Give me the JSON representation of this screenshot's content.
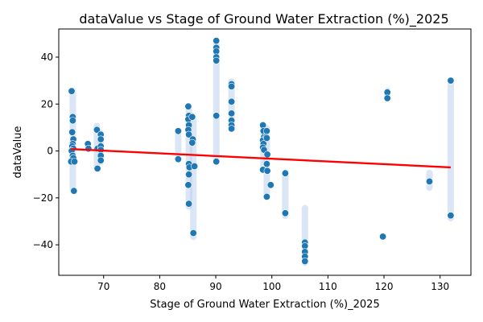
{
  "chart_data": {
    "type": "scatter",
    "title": "dataValue vs Stage of Ground Water Extraction (%)_2025",
    "xlabel": "Stage of Ground Water Extraction (%)_2025",
    "ylabel": "dataValue",
    "xlim": [
      62,
      135.5
    ],
    "ylim": [
      -53,
      52
    ],
    "xticks": [
      70,
      80,
      90,
      100,
      110,
      120,
      130
    ],
    "yticks": [
      -40,
      -20,
      0,
      20,
      40
    ],
    "grid": false,
    "colors": {
      "points": "#1f77b4",
      "band": "#aec7e8",
      "regression": "#ff0000"
    },
    "series": [
      {
        "type": "scatter",
        "points": [
          [
            64.3,
            25.5
          ],
          [
            64.5,
            14.5
          ],
          [
            64.5,
            13
          ],
          [
            64.4,
            8
          ],
          [
            64.6,
            5
          ],
          [
            64.5,
            3
          ],
          [
            64.4,
            2
          ],
          [
            64.6,
            1
          ],
          [
            64.3,
            0
          ],
          [
            64.5,
            -2
          ],
          [
            64.6,
            -3
          ],
          [
            64.2,
            -4.5
          ],
          [
            64.8,
            -4.5
          ],
          [
            64.7,
            -17
          ],
          [
            67.2,
            3
          ],
          [
            67.3,
            1
          ],
          [
            68.8,
            9
          ],
          [
            68.9,
            1
          ],
          [
            68.9,
            -7.5
          ],
          [
            69.5,
            7
          ],
          [
            69.5,
            5
          ],
          [
            69.5,
            2
          ],
          [
            69.5,
            0.5
          ],
          [
            69.5,
            -2
          ],
          [
            69.5,
            -4
          ],
          [
            83.3,
            8.5
          ],
          [
            83.3,
            -3.5
          ],
          [
            85.1,
            19
          ],
          [
            85.2,
            15
          ],
          [
            85.1,
            13.5
          ],
          [
            85.2,
            11
          ],
          [
            85.1,
            9
          ],
          [
            85.2,
            7
          ],
          [
            85.8,
            14.5
          ],
          [
            85.9,
            5
          ],
          [
            85.8,
            3.5
          ],
          [
            85.2,
            -5.5
          ],
          [
            85.3,
            -7
          ],
          [
            86.2,
            -6.5
          ],
          [
            85.2,
            -10
          ],
          [
            85.1,
            -14.5
          ],
          [
            85.2,
            -22.5
          ],
          [
            86.0,
            -35
          ],
          [
            90.1,
            47
          ],
          [
            90.1,
            44
          ],
          [
            90.1,
            42.5
          ],
          [
            90.1,
            40
          ],
          [
            90.1,
            38.5
          ],
          [
            90.1,
            15
          ],
          [
            90.1,
            -4.5
          ],
          [
            92.8,
            28.5
          ],
          [
            92.8,
            27.5
          ],
          [
            92.8,
            21
          ],
          [
            92.8,
            16
          ],
          [
            92.8,
            13
          ],
          [
            92.8,
            11
          ],
          [
            92.8,
            9.5
          ],
          [
            98.4,
            11
          ],
          [
            98.5,
            8.5
          ],
          [
            98.6,
            6
          ],
          [
            98.4,
            4.5
          ],
          [
            98.5,
            3
          ],
          [
            98.4,
            1.5
          ],
          [
            98.6,
            0.5
          ],
          [
            99.1,
            8.5
          ],
          [
            99.0,
            6
          ],
          [
            99.1,
            5.5
          ],
          [
            99.2,
            -1.5
          ],
          [
            98.4,
            -8
          ],
          [
            99.2,
            -8.5
          ],
          [
            99.1,
            -5.5
          ],
          [
            99.1,
            -19.5
          ],
          [
            99.8,
            -14.5
          ],
          [
            102.4,
            -9.5
          ],
          [
            102.4,
            -26.5
          ],
          [
            105.9,
            -39
          ],
          [
            105.9,
            -40.5
          ],
          [
            105.9,
            -43
          ],
          [
            105.9,
            -45
          ],
          [
            105.9,
            -47
          ],
          [
            119.8,
            -36.5
          ],
          [
            120.6,
            25
          ],
          [
            120.6,
            22.5
          ],
          [
            128.1,
            -13
          ],
          [
            131.9,
            30
          ],
          [
            131.9,
            -27.5
          ]
        ]
      }
    ],
    "bands": [
      {
        "x": 64.5,
        "y_min": -18,
        "y_max": 27
      },
      {
        "x": 67.2,
        "y_min": 0,
        "y_max": 4
      },
      {
        "x": 68.8,
        "y_min": -9,
        "y_max": 12
      },
      {
        "x": 69.5,
        "y_min": -6,
        "y_max": 9
      },
      {
        "x": 83.3,
        "y_min": -5,
        "y_max": 10
      },
      {
        "x": 85.2,
        "y_min": -25,
        "y_max": 20
      },
      {
        "x": 86.0,
        "y_min": -38,
        "y_max": 15
      },
      {
        "x": 90.1,
        "y_min": -6,
        "y_max": 47
      },
      {
        "x": 92.8,
        "y_min": 8,
        "y_max": 31
      },
      {
        "x": 98.5,
        "y_min": -9,
        "y_max": 12
      },
      {
        "x": 99.1,
        "y_min": -21,
        "y_max": 11
      },
      {
        "x": 99.8,
        "y_min": -16,
        "y_max": -13
      },
      {
        "x": 102.4,
        "y_min": -29,
        "y_max": -8
      },
      {
        "x": 105.9,
        "y_min": -49,
        "y_max": -23
      },
      {
        "x": 119.8,
        "y_min": -38,
        "y_max": -35
      },
      {
        "x": 120.6,
        "y_min": 21,
        "y_max": 27
      },
      {
        "x": 128.1,
        "y_min": -17,
        "y_max": -8
      },
      {
        "x": 131.9,
        "y_min": -30,
        "y_max": 31
      }
    ],
    "regression_line": {
      "x": [
        64.2,
        131.9
      ],
      "y": [
        0.8,
        -7.0
      ]
    }
  }
}
